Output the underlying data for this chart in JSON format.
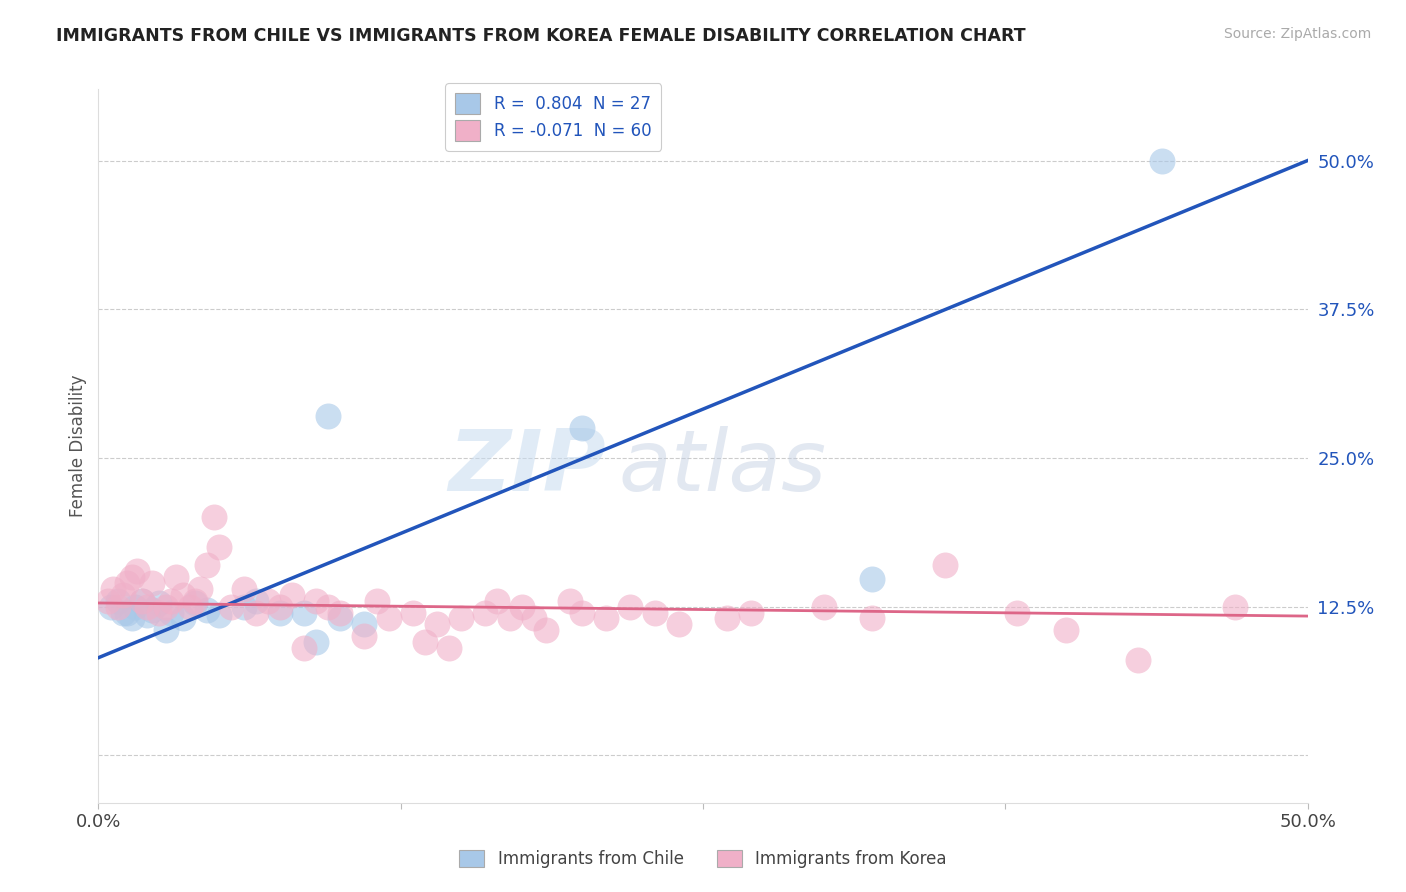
{
  "title": "IMMIGRANTS FROM CHILE VS IMMIGRANTS FROM KOREA FEMALE DISABILITY CORRELATION CHART",
  "source": "Source: ZipAtlas.com",
  "ylabel": "Female Disability",
  "xlim": [
    0.0,
    0.5
  ],
  "ylim": [
    -0.04,
    0.56
  ],
  "yticks": [
    0.0,
    0.125,
    0.25,
    0.375,
    0.5
  ],
  "ytick_labels": [
    "",
    "12.5%",
    "25.0%",
    "37.5%",
    "50.0%"
  ],
  "xtick_positions": [
    0.0,
    0.125,
    0.25,
    0.375,
    0.5
  ],
  "xtick_labels": [
    "0.0%",
    "",
    "",
    "",
    "50.0%"
  ],
  "grid_color": "#cccccc",
  "background_color": "#ffffff",
  "chile_color": "#a8c8e8",
  "korea_color": "#f0b0c8",
  "chile_line_color": "#2255bb",
  "korea_line_color": "#dd6688",
  "chile_R": 0.804,
  "chile_N": 27,
  "korea_R": -0.071,
  "korea_N": 60,
  "chile_scatter_x": [
    0.005,
    0.008,
    0.01,
    0.012,
    0.014,
    0.015,
    0.018,
    0.02,
    0.022,
    0.025,
    0.028,
    0.03,
    0.035,
    0.04,
    0.045,
    0.05,
    0.06,
    0.065,
    0.075,
    0.085,
    0.09,
    0.095,
    0.1,
    0.11,
    0.2,
    0.32,
    0.44
  ],
  "chile_scatter_y": [
    0.125,
    0.13,
    0.12,
    0.12,
    0.115,
    0.125,
    0.13,
    0.118,
    0.122,
    0.128,
    0.105,
    0.12,
    0.115,
    0.128,
    0.122,
    0.118,
    0.125,
    0.13,
    0.12,
    0.12,
    0.095,
    0.285,
    0.115,
    0.11,
    0.275,
    0.148,
    0.5
  ],
  "korea_scatter_x": [
    0.004,
    0.006,
    0.008,
    0.01,
    0.012,
    0.014,
    0.016,
    0.018,
    0.02,
    0.022,
    0.025,
    0.028,
    0.03,
    0.032,
    0.035,
    0.038,
    0.04,
    0.042,
    0.045,
    0.048,
    0.05,
    0.055,
    0.06,
    0.065,
    0.07,
    0.075,
    0.08,
    0.085,
    0.09,
    0.095,
    0.1,
    0.11,
    0.115,
    0.12,
    0.13,
    0.135,
    0.14,
    0.145,
    0.15,
    0.16,
    0.165,
    0.17,
    0.175,
    0.18,
    0.185,
    0.195,
    0.2,
    0.21,
    0.22,
    0.23,
    0.24,
    0.26,
    0.27,
    0.3,
    0.32,
    0.35,
    0.38,
    0.4,
    0.43,
    0.47
  ],
  "korea_scatter_y": [
    0.13,
    0.14,
    0.125,
    0.135,
    0.145,
    0.15,
    0.155,
    0.13,
    0.125,
    0.145,
    0.12,
    0.125,
    0.13,
    0.15,
    0.135,
    0.125,
    0.13,
    0.14,
    0.16,
    0.2,
    0.175,
    0.125,
    0.14,
    0.12,
    0.13,
    0.125,
    0.135,
    0.09,
    0.13,
    0.125,
    0.12,
    0.1,
    0.13,
    0.115,
    0.12,
    0.095,
    0.11,
    0.09,
    0.115,
    0.12,
    0.13,
    0.115,
    0.125,
    0.115,
    0.105,
    0.13,
    0.12,
    0.115,
    0.125,
    0.12,
    0.11,
    0.115,
    0.12,
    0.125,
    0.115,
    0.16,
    0.12,
    0.105,
    0.08,
    0.125
  ],
  "chile_line_x0": 0.0,
  "chile_line_y0": 0.082,
  "chile_line_x1": 0.5,
  "chile_line_y1": 0.5,
  "korea_line_x0": 0.0,
  "korea_line_y0": 0.128,
  "korea_line_x1": 0.5,
  "korea_line_y1": 0.117
}
